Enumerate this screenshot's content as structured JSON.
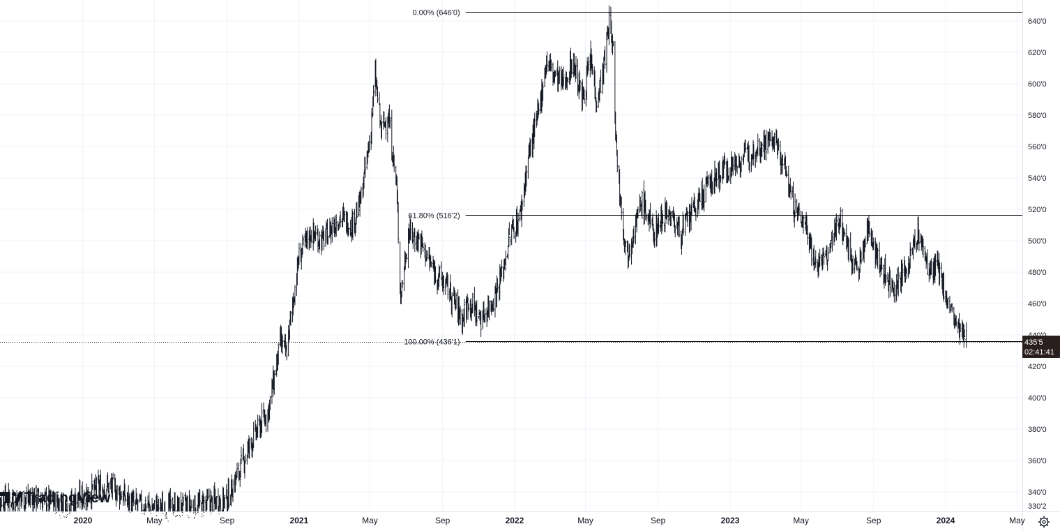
{
  "brand": {
    "name": "TradingView"
  },
  "settings_icon": "gear-icon",
  "colors": {
    "bar": "#131722",
    "fib_line": "#000000",
    "grid": "#f0f3fa",
    "price_tag_bg": "#2a1f1f",
    "axis_text": "#131722"
  },
  "price_tag": {
    "price": "435'5",
    "countdown": "02:41:41"
  },
  "chart_data": {
    "type": "ohlc",
    "price_scale_max_label": "640'0",
    "price_scale_min_label": "330'2",
    "y_axis_ticks": [
      "640'0",
      "620'0",
      "600'0",
      "580'0",
      "560'0",
      "540'0",
      "520'0",
      "500'0",
      "480'0",
      "460'0",
      "440'0",
      "420'0",
      "400'0",
      "380'0",
      "360'0",
      "340'0"
    ],
    "x_axis_ticks": [
      {
        "label": "2020",
        "year": true,
        "date": "2020-01-01"
      },
      {
        "label": "May",
        "year": false,
        "date": "2020-05-01"
      },
      {
        "label": "Sep",
        "year": false,
        "date": "2020-09-01"
      },
      {
        "label": "2021",
        "year": true,
        "date": "2021-01-01"
      },
      {
        "label": "May",
        "year": false,
        "date": "2021-05-01"
      },
      {
        "label": "Sep",
        "year": false,
        "date": "2021-09-01"
      },
      {
        "label": "2022",
        "year": true,
        "date": "2022-01-01"
      },
      {
        "label": "May",
        "year": false,
        "date": "2022-05-01"
      },
      {
        "label": "Sep",
        "year": false,
        "date": "2022-09-01"
      },
      {
        "label": "2023",
        "year": true,
        "date": "2023-01-01"
      },
      {
        "label": "May",
        "year": false,
        "date": "2023-05-01"
      },
      {
        "label": "Sep",
        "year": false,
        "date": "2023-09-01"
      },
      {
        "label": "2024",
        "year": true,
        "date": "2024-01-01"
      },
      {
        "label": "May",
        "year": false,
        "date": "2024-05-01"
      }
    ],
    "ylim": [
      330.2,
      650
    ],
    "fib_levels": [
      {
        "label": "0.00% (646'0)",
        "value": 646.0,
        "from": "2021-10-10"
      },
      {
        "label": "61.80% (516'2)",
        "value": 516.25,
        "from": "2021-10-10"
      },
      {
        "label": "100.00% (436'1)",
        "value": 436.125,
        "from": "2021-10-10"
      }
    ],
    "last_price": 435.625,
    "price_path": [
      [
        "2019-08-01",
        335
      ],
      [
        "2019-10-15",
        336
      ],
      [
        "2019-12-01",
        331
      ],
      [
        "2020-01-15",
        340
      ],
      [
        "2020-02-10",
        344
      ],
      [
        "2020-03-01",
        340
      ],
      [
        "2020-03-25",
        332
      ],
      [
        "2020-05-01",
        330
      ],
      [
        "2020-07-01",
        330
      ],
      [
        "2020-08-15",
        334
      ],
      [
        "2020-09-01",
        335
      ],
      [
        "2020-09-20",
        352
      ],
      [
        "2020-10-10",
        370
      ],
      [
        "2020-11-10",
        392
      ],
      [
        "2020-12-01",
        436
      ],
      [
        "2020-12-10",
        428
      ],
      [
        "2021-01-01",
        490
      ],
      [
        "2021-01-20",
        505
      ],
      [
        "2021-02-10",
        500
      ],
      [
        "2021-03-10",
        515
      ],
      [
        "2021-04-01",
        510
      ],
      [
        "2021-04-15",
        525
      ],
      [
        "2021-05-01",
        565
      ],
      [
        "2021-05-10",
        605
      ],
      [
        "2021-05-20",
        570
      ],
      [
        "2021-06-01",
        580
      ],
      [
        "2021-06-15",
        535
      ],
      [
        "2021-06-22",
        465
      ],
      [
        "2021-07-05",
        505
      ],
      [
        "2021-07-25",
        500
      ],
      [
        "2021-08-15",
        482
      ],
      [
        "2021-09-10",
        470
      ],
      [
        "2021-10-05",
        450
      ],
      [
        "2021-10-15",
        462
      ],
      [
        "2021-11-05",
        450
      ],
      [
        "2021-11-25",
        462
      ],
      [
        "2021-12-10",
        478
      ],
      [
        "2021-12-25",
        505
      ],
      [
        "2022-01-10",
        515
      ],
      [
        "2022-01-25",
        555
      ],
      [
        "2022-02-10",
        580
      ],
      [
        "2022-02-24",
        615
      ],
      [
        "2022-03-10",
        605
      ],
      [
        "2022-03-25",
        600
      ],
      [
        "2022-04-10",
        615
      ],
      [
        "2022-04-25",
        590
      ],
      [
        "2022-05-10",
        615
      ],
      [
        "2022-05-20",
        590
      ],
      [
        "2022-06-01",
        610
      ],
      [
        "2022-06-10",
        640
      ],
      [
        "2022-06-17",
        620
      ],
      [
        "2022-06-22",
        560
      ],
      [
        "2022-07-01",
        520
      ],
      [
        "2022-07-10",
        490
      ],
      [
        "2022-07-20",
        505
      ],
      [
        "2022-08-05",
        525
      ],
      [
        "2022-08-25",
        505
      ],
      [
        "2022-09-15",
        520
      ],
      [
        "2022-10-10",
        505
      ],
      [
        "2022-11-01",
        520
      ],
      [
        "2022-11-25",
        535
      ],
      [
        "2022-12-20",
        545
      ],
      [
        "2023-01-15",
        550
      ],
      [
        "2023-02-15",
        560
      ],
      [
        "2023-03-15",
        565
      ],
      [
        "2023-04-05",
        545
      ],
      [
        "2023-04-20",
        520
      ],
      [
        "2023-05-10",
        510
      ],
      [
        "2023-05-25",
        485
      ],
      [
        "2023-06-15",
        490
      ],
      [
        "2023-07-05",
        515
      ],
      [
        "2023-07-20",
        495
      ],
      [
        "2023-08-05",
        480
      ],
      [
        "2023-08-25",
        510
      ],
      [
        "2023-09-10",
        485
      ],
      [
        "2023-10-05",
        470
      ],
      [
        "2023-10-25",
        480
      ],
      [
        "2023-11-15",
        505
      ],
      [
        "2023-12-05",
        480
      ],
      [
        "2023-12-20",
        482
      ],
      [
        "2024-01-05",
        460
      ],
      [
        "2024-01-20",
        445
      ],
      [
        "2024-02-05",
        436
      ]
    ]
  }
}
